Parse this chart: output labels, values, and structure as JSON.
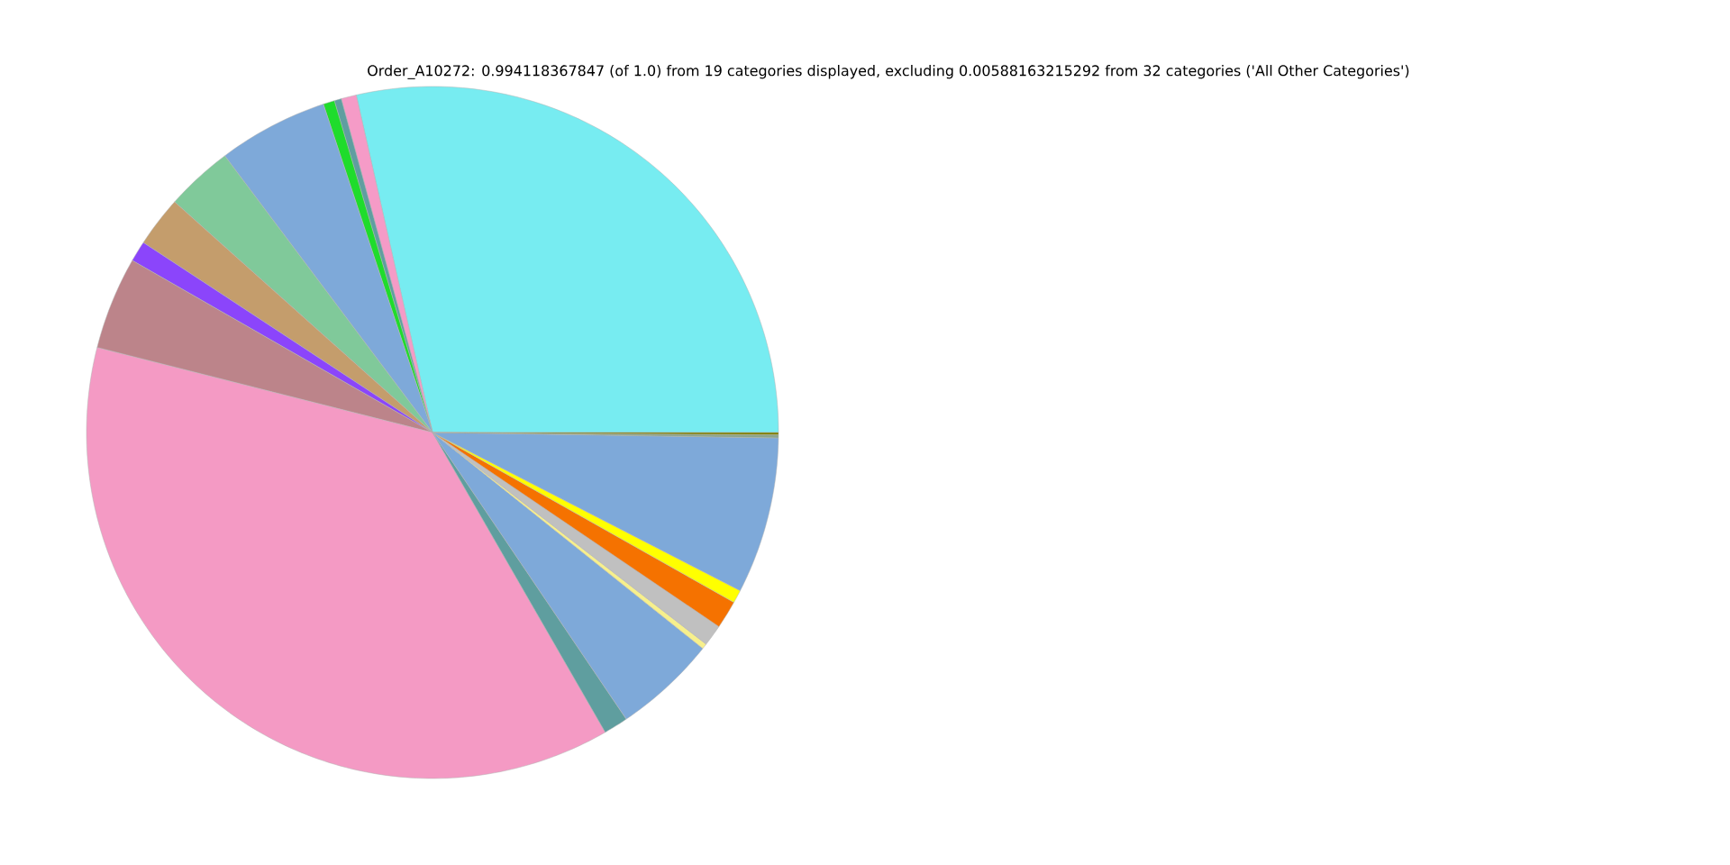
{
  "chart_data": {
    "type": "pie",
    "title": "Order_A10272: 0.994118367847 (of 1.0) from 19 categories displayed, excluding 0.00588163215292 from 32 categories ('All Other Categories')",
    "categories": [
      null,
      null,
      null,
      null,
      null,
      null,
      null,
      null,
      null,
      null,
      null,
      null,
      null,
      null,
      null,
      null,
      null,
      null,
      null
    ],
    "values": [
      28.54,
      0.71,
      0.33,
      0.53,
      5.14,
      3.14,
      2.36,
      0.97,
      4.33,
      37.27,
      1.14,
      4.81,
      0.25,
      1.0,
      1.31,
      0.61,
      7.31,
      0.14,
      0.11
    ],
    "colors": [
      "#77ecf1",
      "#f59bc7",
      "#5f9ea0",
      "#1fdc2c",
      "#7ea9d9",
      "#80c99a",
      "#c49d6c",
      "#8b45fb",
      "#bc848a",
      "#f49ac4",
      "#5f9e9f",
      "#7ea9d9",
      "#f7f08c",
      "#c0c0c0",
      "#f57200",
      "#ffff00",
      "#7ea9d9",
      "#8aa48a",
      "#808000"
    ]
  }
}
